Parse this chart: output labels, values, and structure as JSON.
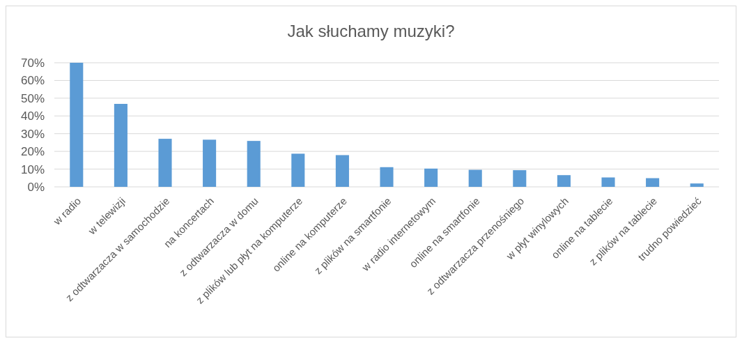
{
  "chart_data": {
    "type": "bar",
    "title": "Jak słuchamy muzyki?",
    "categories": [
      "w radio",
      "w telewizji",
      "z odtwarzacza w samochodzie",
      "na koncertach",
      "z odtwarzacza w domu",
      "z plików lub płyt na komputerze",
      "online na komputerze",
      "z plików na smartfonie",
      "w radio internetowym",
      "online na smartfonie",
      "z odtwarzacza przenośniego",
      "w płyt winylowych",
      "online na tablecie",
      "z plików na tablecie",
      "trudno powiedzieć"
    ],
    "values": [
      70,
      46.8,
      27.1,
      26.6,
      25.9,
      18.7,
      17.9,
      11.1,
      10.3,
      9.6,
      9.4,
      6.6,
      5.3,
      4.9,
      1.9
    ],
    "color": "#5b9bd5",
    "ylim": [
      0,
      70
    ],
    "yticks": [
      {
        "value": 0,
        "label": "0%"
      },
      {
        "value": 10,
        "label": "10%"
      },
      {
        "value": 20,
        "label": "20%"
      },
      {
        "value": 30,
        "label": "30%"
      },
      {
        "value": 40,
        "label": "40%"
      },
      {
        "value": 50,
        "label": "50%"
      },
      {
        "value": 60,
        "label": "60%"
      },
      {
        "value": 70,
        "label": "70%"
      }
    ],
    "grid": "y"
  }
}
